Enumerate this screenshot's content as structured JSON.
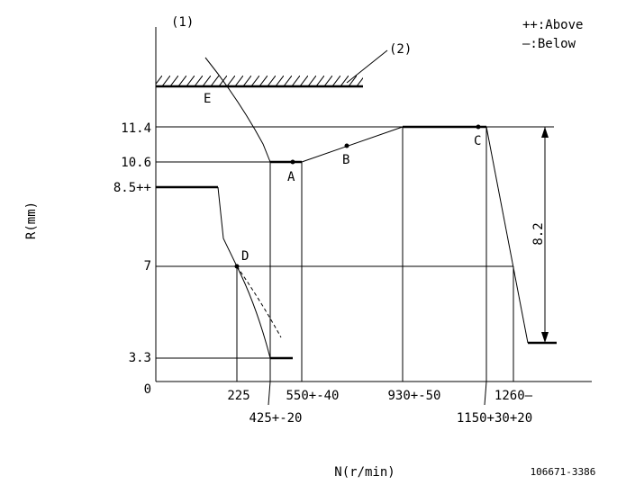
{
  "labels": {
    "diagram_no_1": "(1)",
    "diagram_no_2": "(2)",
    "legend_above": "++:Above",
    "legend_below": "—:Below",
    "point_a": "A",
    "point_b": "B",
    "point_c": "C",
    "point_d": "D",
    "point_e": "E",
    "stroke": "8.2",
    "y_axis_title": "R(mm)",
    "x_axis_title": "N(r/min)",
    "drawing_code": "106671-3386"
  },
  "y_labels": [
    "11.4",
    "10.6",
    "8.5++",
    "7",
    "3.3",
    "0"
  ],
  "x_labels": [
    "225",
    "550+-40",
    "930+-50",
    "1260—"
  ],
  "x_labels_lower": [
    "425+-20",
    "1150+30+20"
  ]
}
